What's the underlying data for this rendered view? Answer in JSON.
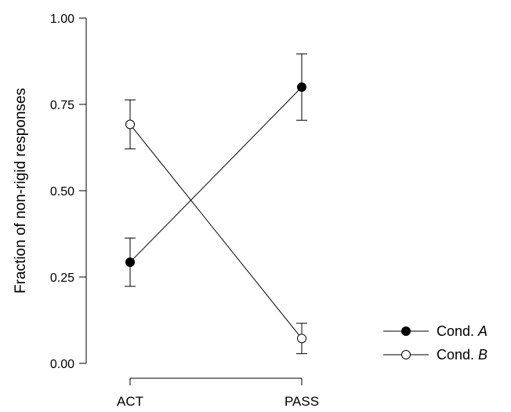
{
  "chart_data": {
    "type": "line",
    "title": "",
    "xlabel": "",
    "ylabel": "Fraction of non-rigid responses",
    "categories": [
      "ACT",
      "PASS"
    ],
    "ylim": [
      0,
      1
    ],
    "yticks": [
      "0.00",
      "0.25",
      "0.50",
      "0.75",
      "1.00"
    ],
    "ytick_values": [
      0,
      0.25,
      0.5,
      0.75,
      1.0
    ],
    "grid": false,
    "legend_position": "bottom-right",
    "series": [
      {
        "name_prefix": "Cond. ",
        "name_suffix": "A",
        "marker": "filled-circle",
        "color": "#000000",
        "values": [
          0.293,
          0.8
        ],
        "error": [
          0.07,
          0.096
        ]
      },
      {
        "name_prefix": "Cond. ",
        "name_suffix": "B",
        "marker": "open-circle",
        "color": "#000000",
        "values": [
          0.692,
          0.072
        ],
        "error": [
          0.071,
          0.044
        ]
      }
    ]
  }
}
